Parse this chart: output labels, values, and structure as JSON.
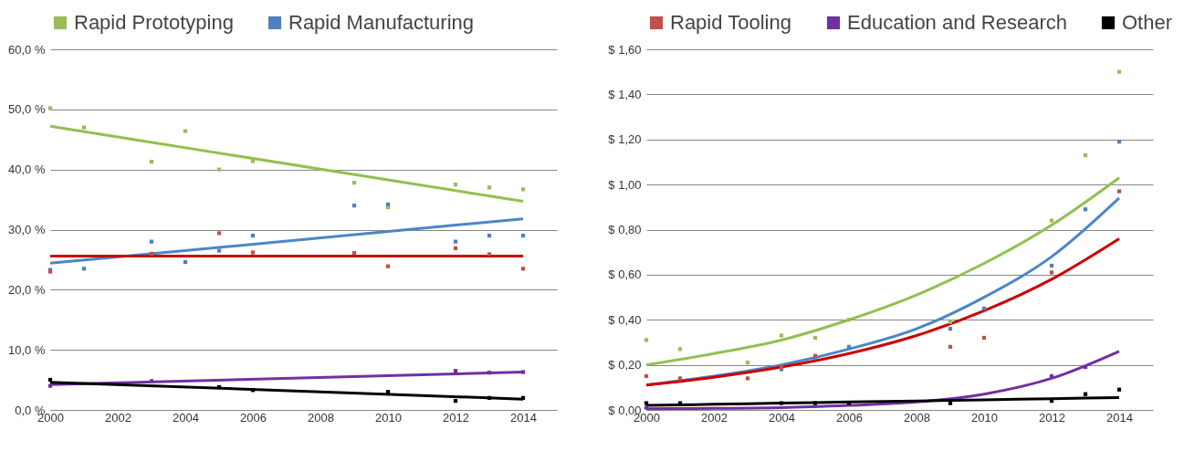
{
  "chart_data": [
    {
      "type": "scatter",
      "marker": "square",
      "legend": "top",
      "grid": "y",
      "xlim": [
        2000,
        2015
      ],
      "xticks": [
        2000,
        2002,
        2004,
        2006,
        2008,
        2010,
        2012,
        2014
      ],
      "ylim": [
        0,
        60
      ],
      "yticks": [
        {
          "value": 0,
          "label": "0,0 %"
        },
        {
          "value": 10,
          "label": "10,0 %"
        },
        {
          "value": 20,
          "label": "20,0 %"
        },
        {
          "value": 30,
          "label": "30,0 %"
        },
        {
          "value": 40,
          "label": "40,0 %"
        },
        {
          "value": 50,
          "label": "50,0 %"
        },
        {
          "value": 60,
          "label": "60,0 %"
        }
      ],
      "series": [
        {
          "name": "Rapid Prototyping",
          "color": "#9bbb59",
          "x": [
            2000,
            2001,
            2003,
            2004,
            2005,
            2006,
            2009,
            2010,
            2012,
            2013,
            2014
          ],
          "values": [
            50.2,
            47,
            41.3,
            46.4,
            40,
            41.4,
            37.8,
            33.7,
            37.5,
            37,
            36.7
          ]
        },
        {
          "name": "Rapid Manufacturing",
          "color": "#4f81bd",
          "x": [
            2000,
            2001,
            2003,
            2004,
            2005,
            2006,
            2009,
            2010,
            2012,
            2013,
            2014
          ],
          "values": [
            23.3,
            23.5,
            28,
            24.6,
            26.5,
            29,
            34,
            34.2,
            28,
            29,
            29
          ]
        },
        {
          "name": "Rapid Tooling",
          "color": "#c0504d",
          "x": [
            2000,
            2003,
            2005,
            2006,
            2009,
            2010,
            2012,
            2013,
            2014
          ],
          "values": [
            23,
            26,
            29.4,
            26.2,
            26.1,
            23.9,
            26.9,
            25.9,
            23.5
          ]
        },
        {
          "name": "Education and Research",
          "color": "#7030a0",
          "x": [
            2000,
            2003,
            2012,
            2013,
            2014
          ],
          "values": [
            4,
            4.8,
            6.5,
            6.2,
            6.3
          ]
        },
        {
          "name": "Other",
          "color": "#000000",
          "x": [
            2000,
            2005,
            2006,
            2010,
            2012,
            2013,
            2014
          ],
          "values": [
            5,
            3.8,
            3.3,
            3,
            1.5,
            2,
            2
          ]
        },
        {
          "type": "line",
          "marker": "none",
          "color": "#92c050",
          "x": [
            2000,
            2014
          ],
          "values": [
            47.2,
            34.7
          ]
        },
        {
          "type": "line",
          "marker": "none",
          "color": "#4a86c8",
          "x": [
            2000,
            2014
          ],
          "values": [
            24.4,
            31.8
          ]
        },
        {
          "type": "line",
          "marker": "none",
          "color": "#cc0000",
          "x": [
            2000,
            2014
          ],
          "values": [
            25.6,
            25.6
          ]
        },
        {
          "type": "line",
          "marker": "none",
          "color": "#7030a0",
          "x": [
            2000,
            2014
          ],
          "values": [
            4.2,
            6.3
          ]
        },
        {
          "type": "line",
          "marker": "none",
          "color": "#000000",
          "x": [
            2000,
            2014
          ],
          "values": [
            4.6,
            1.8
          ]
        }
      ]
    },
    {
      "type": "scatter",
      "marker": "square",
      "legend": "top",
      "grid": "y",
      "xlim": [
        2000,
        2015
      ],
      "xticks": [
        2000,
        2002,
        2004,
        2006,
        2008,
        2010,
        2012,
        2014
      ],
      "ylim": [
        0,
        1.6
      ],
      "yticks": [
        {
          "value": 0,
          "label": "$ 0,00"
        },
        {
          "value": 0.2,
          "label": "$ 0,20"
        },
        {
          "value": 0.4,
          "label": "$ 0,40"
        },
        {
          "value": 0.6,
          "label": "$ 0,60"
        },
        {
          "value": 0.8,
          "label": "$ 0,80"
        },
        {
          "value": 1,
          "label": "$ 1,00"
        },
        {
          "value": 1.2,
          "label": "$ 1,20"
        },
        {
          "value": 1.4,
          "label": "$ 1,40"
        },
        {
          "value": 1.6,
          "label": "$ 1,60"
        }
      ],
      "series": [
        {
          "name": "Rapid Prototyping",
          "color": "#9bbb59",
          "x": [
            2000,
            2001,
            2003,
            2004,
            2005,
            2006,
            2009,
            2012,
            2013,
            2014
          ],
          "values": [
            0.31,
            0.27,
            0.21,
            0.33,
            0.32,
            0.4,
            0.39,
            0.84,
            1.13,
            1.5
          ]
        },
        {
          "name": "Rapid Manufacturing",
          "color": "#4f81bd",
          "x": [
            2004,
            2005,
            2006,
            2009,
            2010,
            2012,
            2013,
            2014
          ],
          "values": [
            0.18,
            0.23,
            0.28,
            0.36,
            0.45,
            0.64,
            0.89,
            1.19
          ]
        },
        {
          "name": "Rapid Tooling",
          "color": "#c0504d",
          "x": [
            2000,
            2001,
            2003,
            2004,
            2005,
            2009,
            2010,
            2012,
            2014
          ],
          "values": [
            0.15,
            0.14,
            0.14,
            0.19,
            0.24,
            0.28,
            0.32,
            0.61,
            0.97
          ]
        },
        {
          "name": "Education and Research",
          "color": "#7030a0",
          "x": [
            2000,
            2012,
            2013
          ],
          "values": [
            0.01,
            0.15,
            0.19
          ]
        },
        {
          "name": "Other",
          "color": "#000000",
          "x": [
            2000,
            2001,
            2004,
            2005,
            2006,
            2009,
            2012,
            2013,
            2014
          ],
          "values": [
            0.03,
            0.03,
            0.03,
            0.03,
            0.03,
            0.03,
            0.04,
            0.07,
            0.09
          ]
        },
        {
          "type": "line",
          "marker": "none",
          "color": "#92c050",
          "x": [
            2000,
            2002,
            2004,
            2006,
            2008,
            2010,
            2012,
            2014
          ],
          "values": [
            0.2,
            0.25,
            0.31,
            0.4,
            0.51,
            0.65,
            0.82,
            1.03
          ]
        },
        {
          "type": "line",
          "marker": "none",
          "color": "#4a86c8",
          "x": [
            2000,
            2002,
            2004,
            2006,
            2008,
            2010,
            2012,
            2014
          ],
          "values": [
            0.11,
            0.15,
            0.2,
            0.27,
            0.36,
            0.5,
            0.68,
            0.94
          ]
        },
        {
          "type": "line",
          "marker": "none",
          "color": "#cc0000",
          "x": [
            2000,
            2002,
            2004,
            2006,
            2008,
            2010,
            2012,
            2014
          ],
          "values": [
            0.11,
            0.145,
            0.19,
            0.25,
            0.33,
            0.44,
            0.58,
            0.76
          ]
        },
        {
          "type": "line",
          "marker": "none",
          "color": "#7030a0",
          "x": [
            2000,
            2002,
            2004,
            2006,
            2008,
            2010,
            2012,
            2014
          ],
          "values": [
            0.005,
            0.007,
            0.01,
            0.02,
            0.035,
            0.07,
            0.14,
            0.26
          ]
        },
        {
          "type": "line",
          "marker": "none",
          "color": "#000000",
          "x": [
            2000,
            2002,
            2004,
            2006,
            2008,
            2010,
            2012,
            2014
          ],
          "values": [
            0.02,
            0.025,
            0.03,
            0.035,
            0.04,
            0.045,
            0.05,
            0.055
          ]
        }
      ]
    }
  ]
}
